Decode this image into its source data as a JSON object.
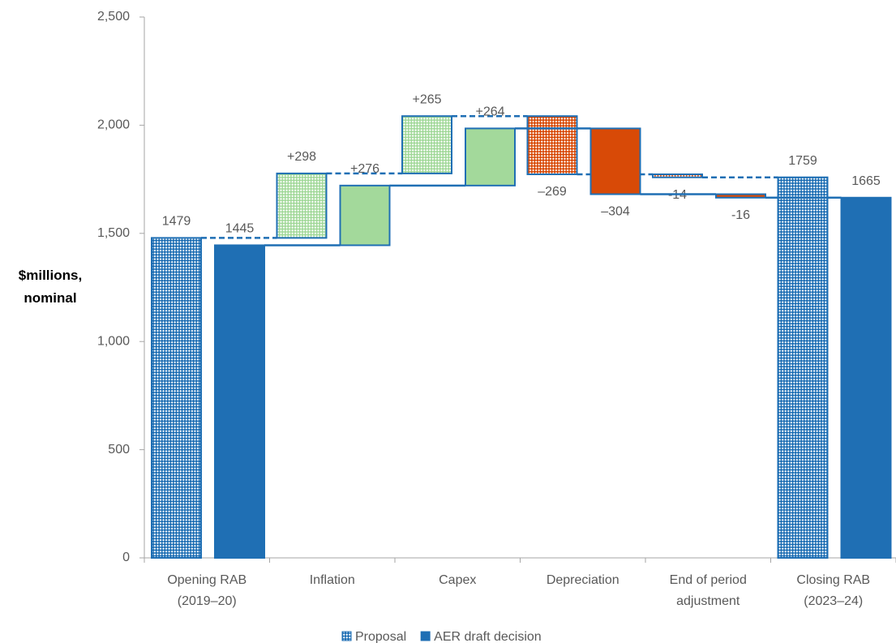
{
  "chart_data": {
    "type": "waterfall",
    "y_label": "$millions,\nnominal",
    "categories": [
      "Opening RAB\n(2019–20)",
      "Inflation",
      "Capex",
      "Depreciation",
      "End of period\nadjustment",
      "Closing RAB\n(2023–24)"
    ],
    "measure": [
      "absolute",
      "relative",
      "relative",
      "relative",
      "relative",
      "total"
    ],
    "increase_color": "#a3d99b",
    "decrease_color": "#d84a07",
    "series": [
      {
        "name": "Proposal",
        "color": "#1f6fb4",
        "pattern": "hatch",
        "values": [
          1479,
          298,
          265,
          -269,
          -14,
          1759
        ],
        "value_labels": [
          "1479",
          "+298",
          "+265",
          "–269",
          "-14",
          "1759"
        ]
      },
      {
        "name": "AER draft decision",
        "color": "#1f6fb4",
        "values": [
          1445,
          276,
          264,
          -304,
          -16,
          1665
        ],
        "value_labels": [
          "1445",
          "+276",
          "+264",
          "–304",
          "-16",
          "1665"
        ]
      }
    ],
    "ylim": [
      0,
      2500
    ],
    "yticks": [
      0,
      500,
      {
        "value": 1000,
        "label": "1,000"
      },
      {
        "value": 1500,
        "label": "1,500"
      },
      {
        "value": 2000,
        "label": "2,000"
      },
      {
        "value": 2500,
        "label": "2,500"
      }
    ]
  }
}
